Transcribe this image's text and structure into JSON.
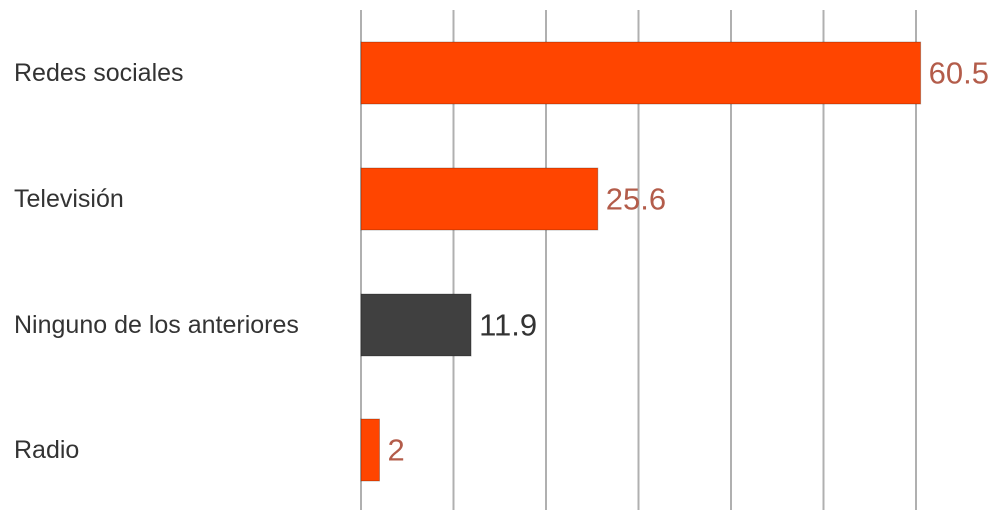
{
  "chart_data": {
    "type": "bar",
    "orientation": "horizontal",
    "title": "",
    "xlabel": "",
    "ylabel": "",
    "categories": [
      "Redes sociales",
      "Televisión",
      "Ninguno de los anteriores",
      "Radio"
    ],
    "values": [
      60.5,
      25.6,
      11.9,
      2
    ],
    "value_labels": [
      "60.5",
      "25.6",
      "11.9",
      "2"
    ],
    "bar_colors": [
      "#ff4500",
      "#ff4500",
      "#404040",
      "#ff4500"
    ],
    "label_colors": [
      "#b35c4a",
      "#b35c4a",
      "#333333",
      "#b35c4a"
    ],
    "xlim": [
      0,
      70
    ],
    "grid": true,
    "grid_step": 10,
    "grid_color": "#b0b0b0",
    "legend": "none"
  }
}
